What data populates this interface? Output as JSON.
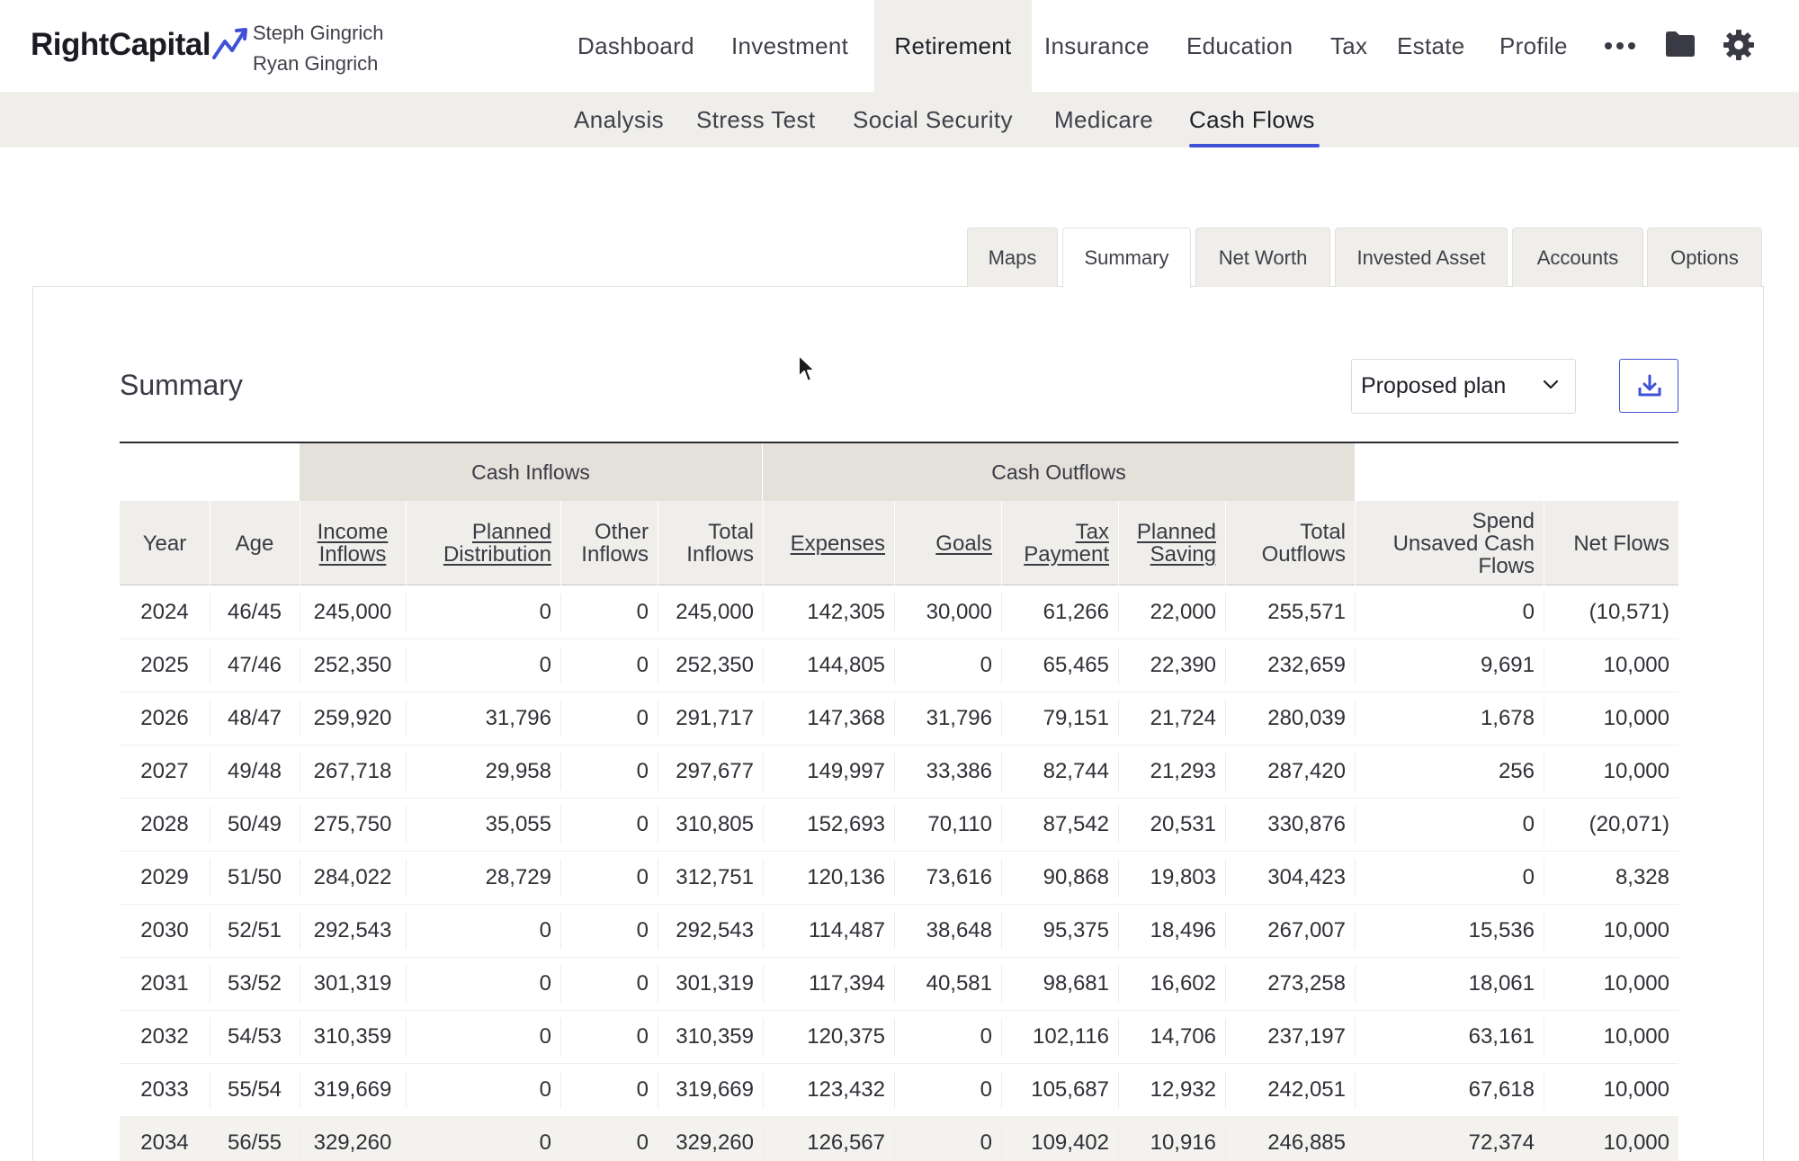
{
  "header": {
    "logo_text": "RightCapital",
    "client_primary": "Steph Gingrich",
    "client_secondary": "Ryan Gingrich",
    "nav": [
      "Dashboard",
      "Investment",
      "Retirement",
      "Insurance",
      "Education",
      "Tax",
      "Estate",
      "Profile"
    ],
    "active_nav": "Retirement",
    "icons": [
      "more-icon",
      "folder-icon",
      "gear-icon"
    ]
  },
  "subnav": {
    "items": [
      "Analysis",
      "Stress Test",
      "Social Security",
      "Medicare",
      "Cash Flows"
    ],
    "active": "Cash Flows"
  },
  "tabs": {
    "items": [
      "Maps",
      "Summary",
      "Net Worth",
      "Invested Asset",
      "Accounts",
      "Options"
    ],
    "active": "Summary"
  },
  "panel": {
    "title": "Summary",
    "plan_select_value": "Proposed plan",
    "download_icon": "download-icon"
  },
  "table": {
    "group_headers": {
      "inflows": "Cash Inflows",
      "outflows": "Cash Outflows"
    },
    "columns": [
      {
        "line1": "Year",
        "line2": ""
      },
      {
        "line1": "Age",
        "line2": ""
      },
      {
        "line1": "Income",
        "line2": "Inflows"
      },
      {
        "line1": "Planned",
        "line2": "Distribution"
      },
      {
        "line1": "Other",
        "line2": "Inflows"
      },
      {
        "line1": "Total",
        "line2": "Inflows"
      },
      {
        "line1": "Expenses",
        "line2": ""
      },
      {
        "line1": "Goals",
        "line2": ""
      },
      {
        "line1": "Tax",
        "line2": "Payment"
      },
      {
        "line1": "Planned",
        "line2": "Saving"
      },
      {
        "line1": "Total",
        "line2": "Outflows"
      },
      {
        "line1": "Spend",
        "line2": "Unsaved Cash",
        "line3": "Flows"
      },
      {
        "line1": "Net Flows",
        "line2": ""
      }
    ],
    "rows": [
      [
        "2024",
        "46/45",
        "245,000",
        "0",
        "0",
        "245,000",
        "142,305",
        "30,000",
        "61,266",
        "22,000",
        "255,571",
        "0",
        "(10,571)"
      ],
      [
        "2025",
        "47/46",
        "252,350",
        "0",
        "0",
        "252,350",
        "144,805",
        "0",
        "65,465",
        "22,390",
        "232,659",
        "9,691",
        "10,000"
      ],
      [
        "2026",
        "48/47",
        "259,920",
        "31,796",
        "0",
        "291,717",
        "147,368",
        "31,796",
        "79,151",
        "21,724",
        "280,039",
        "1,678",
        "10,000"
      ],
      [
        "2027",
        "49/48",
        "267,718",
        "29,958",
        "0",
        "297,677",
        "149,997",
        "33,386",
        "82,744",
        "21,293",
        "287,420",
        "256",
        "10,000"
      ],
      [
        "2028",
        "50/49",
        "275,750",
        "35,055",
        "0",
        "310,805",
        "152,693",
        "70,110",
        "87,542",
        "20,531",
        "330,876",
        "0",
        "(20,071)"
      ],
      [
        "2029",
        "51/50",
        "284,022",
        "28,729",
        "0",
        "312,751",
        "120,136",
        "73,616",
        "90,868",
        "19,803",
        "304,423",
        "0",
        "8,328"
      ],
      [
        "2030",
        "52/51",
        "292,543",
        "0",
        "0",
        "292,543",
        "114,487",
        "38,648",
        "95,375",
        "18,496",
        "267,007",
        "15,536",
        "10,000"
      ],
      [
        "2031",
        "53/52",
        "301,319",
        "0",
        "0",
        "301,319",
        "117,394",
        "40,581",
        "98,681",
        "16,602",
        "273,258",
        "18,061",
        "10,000"
      ],
      [
        "2032",
        "54/53",
        "310,359",
        "0",
        "0",
        "310,359",
        "120,375",
        "0",
        "102,116",
        "14,706",
        "237,197",
        "63,161",
        "10,000"
      ],
      [
        "2033",
        "55/54",
        "319,669",
        "0",
        "0",
        "319,669",
        "123,432",
        "0",
        "105,687",
        "12,932",
        "242,051",
        "67,618",
        "10,000"
      ],
      [
        "2034",
        "56/55",
        "329,260",
        "0",
        "0",
        "329,260",
        "126,567",
        "0",
        "109,402",
        "10,916",
        "246,885",
        "72,374",
        "10,000"
      ]
    ]
  }
}
